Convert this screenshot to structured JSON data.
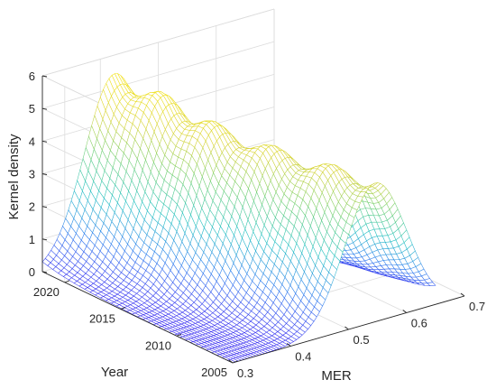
{
  "chart_data": {
    "type": "surface",
    "title": "",
    "xlabel": "MER",
    "ylabel": "Year",
    "zlabel": "Kernel density",
    "x_ticks": [
      "0.3",
      "0.4",
      "0.5",
      "0.6",
      "0.7"
    ],
    "y_ticks": [
      "2005",
      "2010",
      "2015",
      "2020"
    ],
    "z_ticks": [
      "0",
      "1",
      "2",
      "3",
      "4",
      "5",
      "6"
    ],
    "xlim": [
      0.3,
      0.7
    ],
    "ylim": [
      2005,
      2022
    ],
    "zlim": [
      0,
      6
    ],
    "grid": true,
    "colormap": [
      "#3b2ff0",
      "#2f80ee",
      "#28c2c4",
      "#6fd07a",
      "#d7d43a",
      "#f3e21b"
    ],
    "years": [
      2005,
      2006,
      2007,
      2008,
      2009,
      2010,
      2011,
      2012,
      2013,
      2014,
      2015,
      2016,
      2017,
      2018,
      2019,
      2020,
      2021,
      2022
    ],
    "mer_range": [
      0.3,
      0.65
    ],
    "density_peak": [
      {
        "year": 2005,
        "mer": 0.545,
        "density": 4.2
      },
      {
        "year": 2007,
        "mer": 0.53,
        "density": 4.2
      },
      {
        "year": 2009,
        "mer": 0.515,
        "density": 4.3
      },
      {
        "year": 2011,
        "mer": 0.5,
        "density": 4.3
      },
      {
        "year": 2013,
        "mer": 0.48,
        "density": 4.5
      },
      {
        "year": 2015,
        "mer": 0.465,
        "density": 4.6
      },
      {
        "year": 2017,
        "mer": 0.455,
        "density": 4.8
      },
      {
        "year": 2019,
        "mer": 0.445,
        "density": 5.0
      },
      {
        "year": 2021,
        "mer": 0.43,
        "density": 5.2
      },
      {
        "year": 2022,
        "mer": 0.425,
        "density": 5.3
      }
    ]
  }
}
